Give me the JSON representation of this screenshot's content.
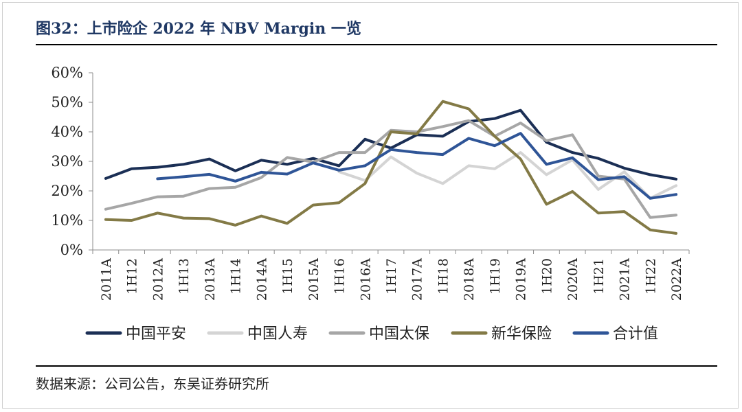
{
  "header": {
    "title": "图32：上市险企 2022 年 NBV Margin 一览"
  },
  "footer": {
    "source": "数据来源：公司公告，东吴证券研究所"
  },
  "chart_data": {
    "type": "line",
    "title": "图32：上市险企 2022 年 NBV Margin 一览",
    "xlabel": "",
    "ylabel": "",
    "ylim": [
      0,
      60
    ],
    "y_ticks": [
      "0%",
      "10%",
      "20%",
      "30%",
      "40%",
      "50%",
      "60%"
    ],
    "grid": false,
    "legend_position": "bottom",
    "categories": [
      "2011A",
      "1H12",
      "2012A",
      "1H13",
      "2013A",
      "1H14",
      "2014A",
      "1H15",
      "2015A",
      "1H16",
      "2016A",
      "1H17",
      "2017A",
      "1H18",
      "2018A",
      "1H19",
      "2019A",
      "1H20",
      "2020A",
      "1H21",
      "2021A",
      "1H22",
      "2022A"
    ],
    "series": [
      {
        "name": "中国平安",
        "color": "#1b2f55",
        "values": [
          24.2,
          27.5,
          28.0,
          29.0,
          30.8,
          26.8,
          30.4,
          29.0,
          31.0,
          28.5,
          37.5,
          34.5,
          39.0,
          38.5,
          43.5,
          44.5,
          47.3,
          36.5,
          33.0,
          31.0,
          27.7,
          25.5,
          24.0
        ]
      },
      {
        "name": "中国人寿",
        "color": "#d4d4d4",
        "values": [
          null,
          null,
          null,
          null,
          null,
          null,
          null,
          null,
          null,
          26.5,
          23.5,
          31.5,
          26.0,
          22.5,
          28.5,
          27.5,
          33.0,
          25.5,
          30.5,
          20.5,
          26.5,
          17.5,
          21.8
        ]
      },
      {
        "name": "中国太保",
        "color": "#a6a6a6",
        "values": [
          13.8,
          15.8,
          18.0,
          18.2,
          20.8,
          21.2,
          24.5,
          31.3,
          29.8,
          33.0,
          33.0,
          40.5,
          40.0,
          41.8,
          43.8,
          38.5,
          43.0,
          37.0,
          39.0,
          25.0,
          24.0,
          11.0,
          11.8
        ]
      },
      {
        "name": "新华保险",
        "color": "#837a46",
        "values": [
          10.3,
          10.0,
          12.5,
          10.8,
          10.6,
          8.4,
          11.5,
          9.0,
          15.2,
          16.0,
          22.5,
          40.0,
          39.3,
          50.3,
          47.8,
          38.5,
          30.8,
          15.5,
          19.8,
          12.5,
          13.0,
          6.8,
          5.6
        ]
      },
      {
        "name": "合计值",
        "color": "#2f5597",
        "values": [
          null,
          null,
          24.1,
          24.8,
          25.6,
          23.3,
          26.3,
          25.7,
          29.5,
          27.0,
          28.5,
          34.0,
          33.0,
          32.3,
          37.8,
          35.3,
          39.5,
          29.0,
          31.2,
          23.8,
          24.8,
          17.5,
          18.8
        ]
      }
    ]
  }
}
